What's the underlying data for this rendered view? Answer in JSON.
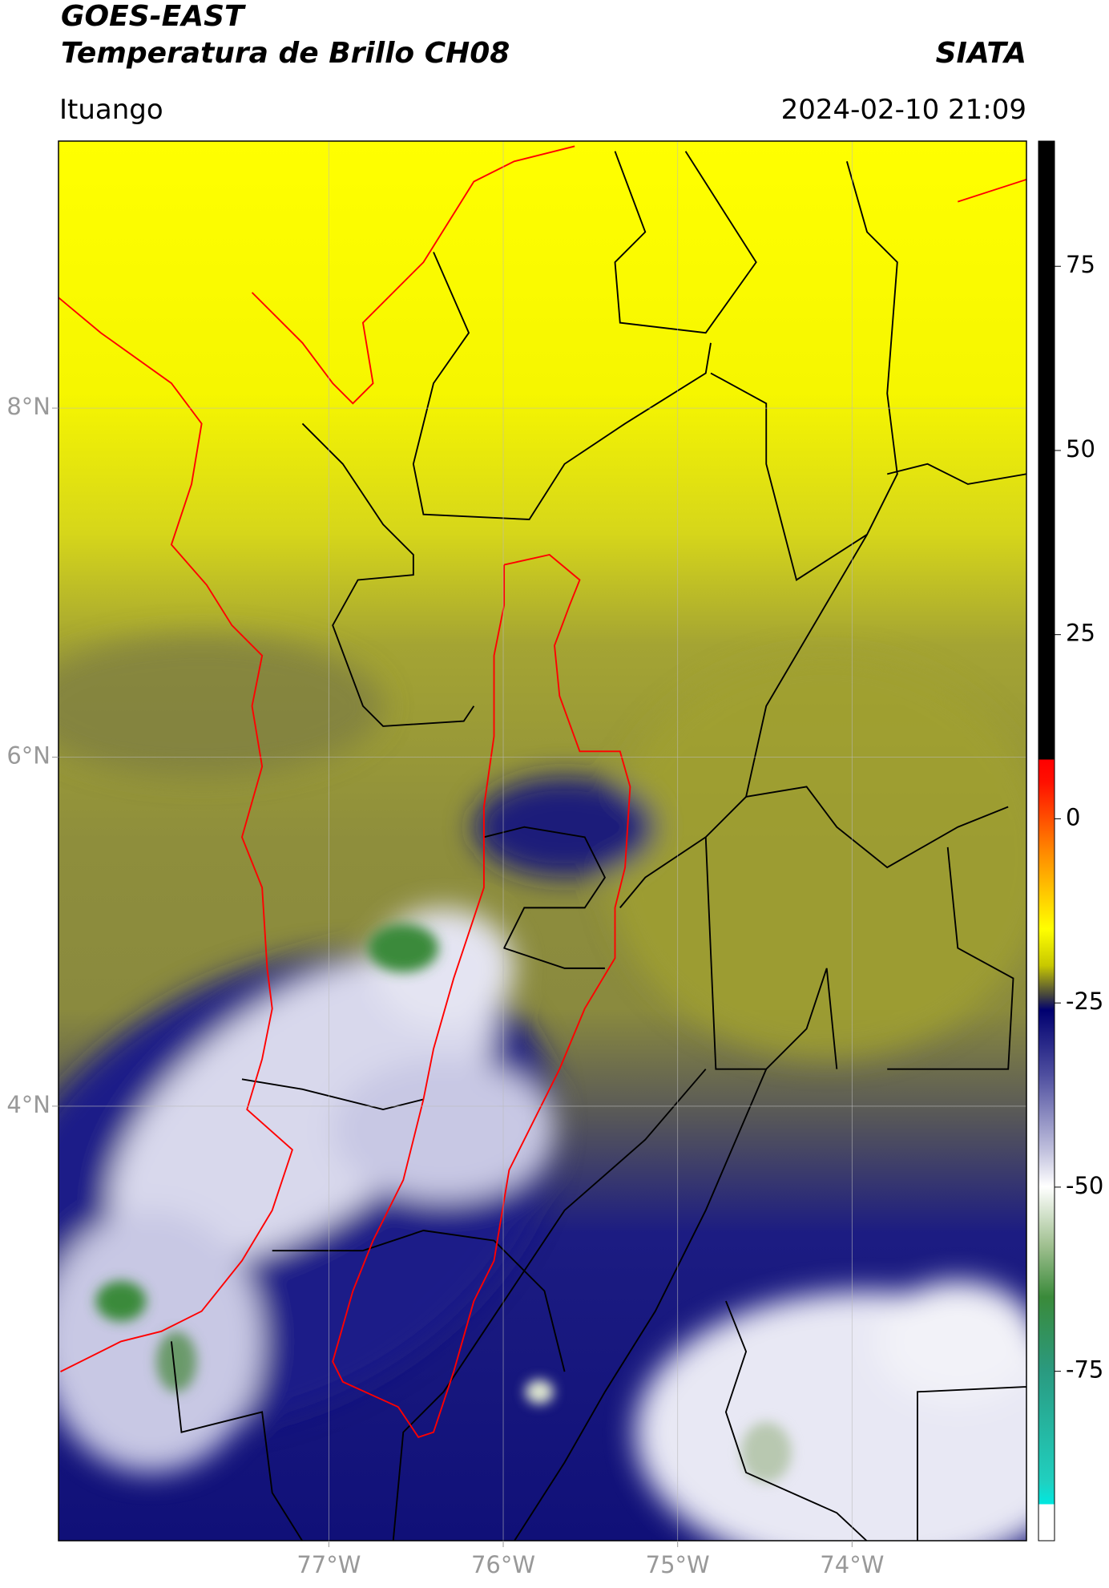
{
  "header": {
    "title": "GOES-EAST",
    "subtitle": "Temperatura de Brillo CH08",
    "brand": "SIATA",
    "location": "Ituango",
    "datetime": "2024-02-10 21:09"
  },
  "map": {
    "xlim": [
      -78.55,
      -73.0
    ],
    "ylim": [
      1.51,
      9.53
    ],
    "xticks": [
      {
        "value": -77,
        "label": "77°W"
      },
      {
        "value": -76,
        "label": "76°W"
      },
      {
        "value": -75,
        "label": "75°W"
      },
      {
        "value": -74,
        "label": "74°W"
      }
    ],
    "yticks": [
      {
        "value": 8,
        "label": "8°N"
      },
      {
        "value": 6,
        "label": "6°N"
      },
      {
        "value": 4,
        "label": "4°N"
      }
    ],
    "grid": true
  },
  "colorbar": {
    "lim": [
      -98,
      92
    ],
    "ticks": [
      75,
      50,
      25,
      0,
      -25,
      -50,
      -75
    ]
  }
}
